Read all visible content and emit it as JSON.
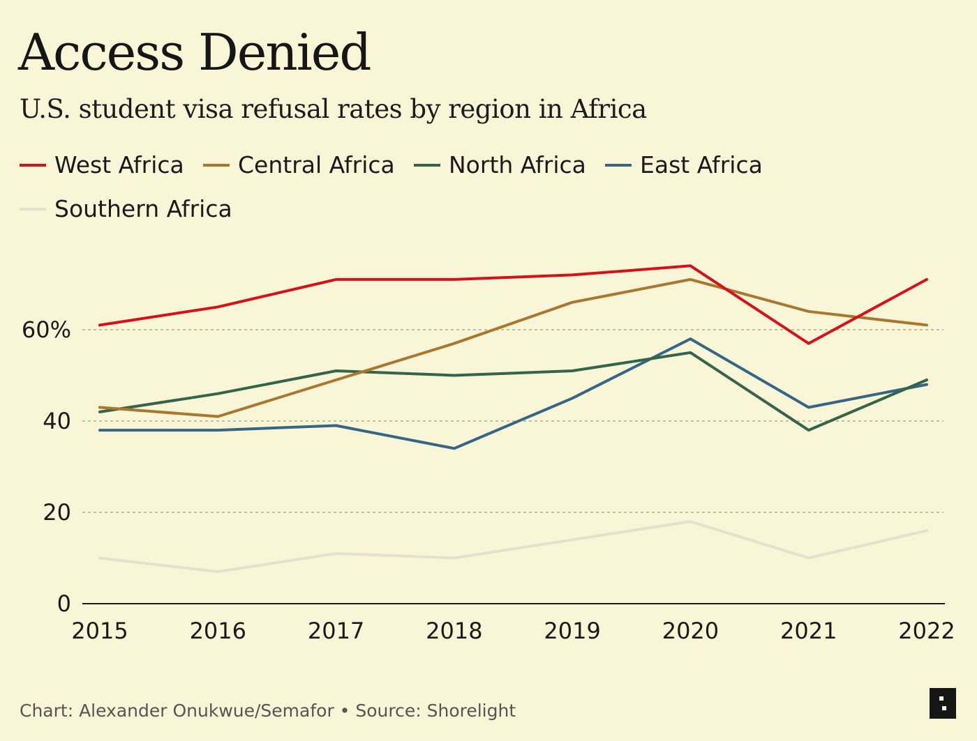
{
  "header": {
    "title": "Access Denied",
    "subtitle": "U.S. student visa refusal rates by region in Africa"
  },
  "footer": {
    "credit": "Chart: Alexander Onukwue/Semafor • Source: Shorelight"
  },
  "colors": {
    "background": "#f9f5d7",
    "grid": "#b0ad9a",
    "axis": "#1a1a1a"
  },
  "chart_data": {
    "type": "line",
    "title": "Access Denied",
    "subtitle": "U.S. student visa refusal rates by region in Africa",
    "x": [
      2015,
      2016,
      2017,
      2018,
      2019,
      2020,
      2021,
      2022
    ],
    "x_tick_labels": [
      "2015",
      "2016",
      "2017",
      "2018",
      "2019",
      "2020",
      "2021",
      "2022"
    ],
    "y_ticks": [
      0,
      20,
      40,
      60
    ],
    "y_tick_labels": [
      "0",
      "20",
      "40",
      "60%"
    ],
    "ylim": [
      0,
      75
    ],
    "grid": "horizontal-dashed",
    "legend_position": "top",
    "series": [
      {
        "name": "West Africa",
        "color": "#d4121a",
        "values": [
          61,
          65,
          71,
          71,
          72,
          74,
          57,
          71
        ]
      },
      {
        "name": "Central Africa",
        "color": "#a8782f",
        "values": [
          43,
          41,
          49,
          57,
          66,
          71,
          64,
          61
        ]
      },
      {
        "name": "North Africa",
        "color": "#34654a",
        "values": [
          42,
          46,
          51,
          50,
          51,
          55,
          38,
          49
        ]
      },
      {
        "name": "East Africa",
        "color": "#356686",
        "values": [
          38,
          38,
          39,
          34,
          45,
          58,
          43,
          48
        ]
      },
      {
        "name": "Southern Africa",
        "color": "#e6e0cf",
        "values": [
          10,
          7,
          11,
          10,
          14,
          18,
          10,
          16
        ]
      }
    ]
  }
}
